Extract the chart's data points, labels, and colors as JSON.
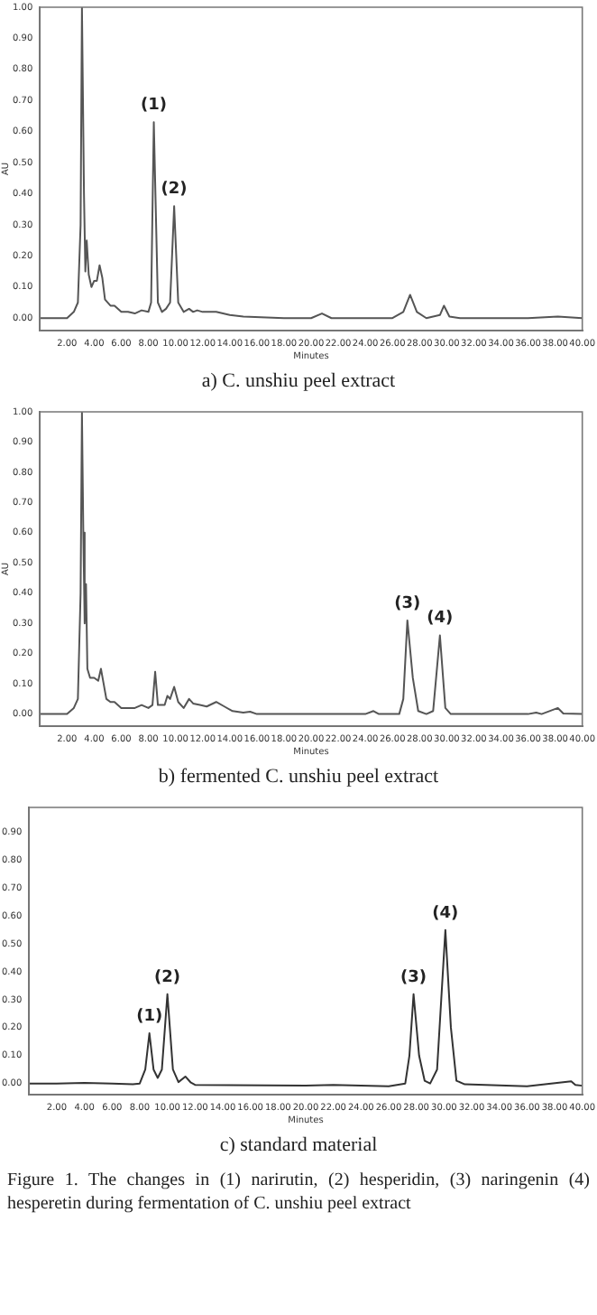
{
  "chart_data": [
    {
      "type": "line",
      "title": "a) C. unshiu peel extract",
      "xlabel": "Minutes",
      "ylabel": "AU",
      "color": "#555555",
      "marker": "none",
      "x": [
        0,
        2,
        2.5,
        2.8,
        3,
        3.1,
        3.25,
        3.35,
        3.45,
        3.6,
        3.8,
        4,
        4.2,
        4.4,
        4.6,
        4.8,
        5.2,
        5.5,
        6,
        6.5,
        7,
        7.5,
        8,
        8.2,
        8.4,
        8.7,
        9,
        9.3,
        9.6,
        9.9,
        10.2,
        10.6,
        11,
        11.3,
        11.6,
        12,
        13,
        14,
        15,
        18,
        20,
        20.8,
        21.5,
        26,
        26.8,
        27.3,
        27.8,
        28.5,
        29.5,
        29.8,
        30.2,
        31,
        36,
        38.2,
        40
      ],
      "values": [
        0,
        0,
        0.02,
        0.05,
        0.3,
        1,
        0.4,
        0.15,
        0.25,
        0.14,
        0.1,
        0.12,
        0.12,
        0.17,
        0.13,
        0.06,
        0.04,
        0.04,
        0.02,
        0.02,
        0.015,
        0.025,
        0.02,
        0.05,
        0.63,
        0.05,
        0.02,
        0.03,
        0.05,
        0.36,
        0.05,
        0.02,
        0.03,
        0.02,
        0.025,
        0.02,
        0.02,
        0.01,
        0.005,
        0,
        0,
        0.015,
        0,
        0,
        0.02,
        0.075,
        0.02,
        0,
        0.01,
        0.04,
        0.005,
        0,
        0,
        0.005,
        0
      ],
      "xlim": [
        0,
        40
      ],
      "ylim": [
        -0.04,
        1
      ],
      "xticks": [
        {
          "value": 2,
          "label": "2.00"
        },
        {
          "value": 4,
          "label": "4.00"
        },
        {
          "value": 6,
          "label": "6.00"
        },
        {
          "value": 8,
          "label": "8.00"
        },
        {
          "value": 10,
          "label": "10.00"
        },
        {
          "value": 12,
          "label": "12.00"
        },
        {
          "value": 14,
          "label": "14.00"
        },
        {
          "value": 16,
          "label": "16.00"
        },
        {
          "value": 18,
          "label": "18.00"
        },
        {
          "value": 20,
          "label": "20.00"
        },
        {
          "value": 22,
          "label": "22.00"
        },
        {
          "value": 24,
          "label": "24.00"
        },
        {
          "value": 26,
          "label": "26.00"
        },
        {
          "value": 28,
          "label": "28.00"
        },
        {
          "value": 30,
          "label": "30.00"
        },
        {
          "value": 32,
          "label": "32.00"
        },
        {
          "value": 34,
          "label": "34.00"
        },
        {
          "value": 36,
          "label": "36.00"
        },
        {
          "value": 38,
          "label": "38.00"
        },
        {
          "value": 40,
          "label": "40.00"
        }
      ],
      "yticks": [
        {
          "value": 0,
          "label": "0.00"
        },
        {
          "value": 0.1,
          "label": "0.10"
        },
        {
          "value": 0.2,
          "label": "0.20"
        },
        {
          "value": 0.3,
          "label": "0.30"
        },
        {
          "value": 0.4,
          "label": "0.40"
        },
        {
          "value": 0.5,
          "label": "0.50"
        },
        {
          "value": 0.6,
          "label": "0.60"
        },
        {
          "value": 0.7,
          "label": "0.70"
        },
        {
          "value": 0.8,
          "label": "0.80"
        },
        {
          "value": 0.9,
          "label": "0.90"
        },
        {
          "value": 1,
          "label": "1.00"
        }
      ],
      "annotations": [
        {
          "text": "(1)",
          "x": 8.4,
          "y": 0.63
        },
        {
          "text": "(2)",
          "x": 9.9,
          "y": 0.36
        }
      ]
    },
    {
      "type": "line",
      "title": "b) fermented C. unshiu peel extract",
      "xlabel": "Minutes",
      "ylabel": "AU",
      "color": "#555555",
      "marker": "none",
      "x": [
        0,
        2,
        2.5,
        2.8,
        3,
        3.1,
        3.2,
        3.3,
        3.4,
        3.5,
        3.7,
        4,
        4.3,
        4.5,
        4.7,
        4.9,
        5.2,
        5.5,
        6,
        6.5,
        7,
        7.5,
        8,
        8.3,
        8.5,
        8.7,
        9.2,
        9.4,
        9.6,
        9.9,
        10.2,
        10.6,
        11,
        11.3,
        11.8,
        12.3,
        13,
        13.6,
        14.2,
        15,
        15.5,
        16,
        24,
        24.6,
        25,
        26.5,
        26.8,
        27.1,
        27.5,
        27.9,
        28.5,
        29,
        29.5,
        29.9,
        30.3,
        36,
        36.6,
        37,
        38.2,
        38.6,
        40
      ],
      "values": [
        0,
        0,
        0.02,
        0.05,
        0.4,
        1,
        0.6,
        0.3,
        0.43,
        0.15,
        0.12,
        0.12,
        0.11,
        0.15,
        0.1,
        0.05,
        0.04,
        0.04,
        0.02,
        0.02,
        0.02,
        0.03,
        0.02,
        0.03,
        0.14,
        0.03,
        0.03,
        0.06,
        0.05,
        0.09,
        0.04,
        0.02,
        0.05,
        0.035,
        0.03,
        0.025,
        0.04,
        0.025,
        0.01,
        0.005,
        0.008,
        0,
        0,
        0.01,
        0,
        0,
        0.05,
        0.31,
        0.12,
        0.01,
        0,
        0.01,
        0.26,
        0.02,
        0,
        0,
        0.005,
        0,
        0.02,
        0.002,
        0
      ],
      "xlim": [
        0,
        40
      ],
      "ylim": [
        -0.04,
        1
      ],
      "xticks": [
        {
          "value": 2,
          "label": "2.00"
        },
        {
          "value": 4,
          "label": "4.00"
        },
        {
          "value": 6,
          "label": "6.00"
        },
        {
          "value": 8,
          "label": "8.00"
        },
        {
          "value": 10,
          "label": "10.00"
        },
        {
          "value": 12,
          "label": "12.00"
        },
        {
          "value": 14,
          "label": "14.00"
        },
        {
          "value": 16,
          "label": "16.00"
        },
        {
          "value": 18,
          "label": "18.00"
        },
        {
          "value": 20,
          "label": "20.00"
        },
        {
          "value": 22,
          "label": "22.00"
        },
        {
          "value": 24,
          "label": "24.00"
        },
        {
          "value": 26,
          "label": "26.00"
        },
        {
          "value": 28,
          "label": "28.00"
        },
        {
          "value": 30,
          "label": "30.00"
        },
        {
          "value": 32,
          "label": "32.00"
        },
        {
          "value": 34,
          "label": "34.00"
        },
        {
          "value": 36,
          "label": "36.00"
        },
        {
          "value": 38,
          "label": "38.00"
        },
        {
          "value": 40,
          "label": "40.00"
        }
      ],
      "yticks": [
        {
          "value": 0,
          "label": "0.00"
        },
        {
          "value": 0.1,
          "label": "0.10"
        },
        {
          "value": 0.2,
          "label": "0.20"
        },
        {
          "value": 0.3,
          "label": "0.30"
        },
        {
          "value": 0.4,
          "label": "0.40"
        },
        {
          "value": 0.5,
          "label": "0.50"
        },
        {
          "value": 0.6,
          "label": "0.60"
        },
        {
          "value": 0.7,
          "label": "0.70"
        },
        {
          "value": 0.8,
          "label": "0.80"
        },
        {
          "value": 0.9,
          "label": "0.90"
        },
        {
          "value": 1,
          "label": "1.00"
        }
      ],
      "annotations": [
        {
          "text": "(3)",
          "x": 27.1,
          "y": 0.31
        },
        {
          "text": "(4)",
          "x": 29.5,
          "y": 0.26
        }
      ]
    },
    {
      "type": "line",
      "title": "c) standard material",
      "xlabel": "Minutes",
      "color": "#333333",
      "marker": "none",
      "x": [
        0,
        2,
        4,
        6,
        7.5,
        8,
        8.4,
        8.7,
        9,
        9.3,
        9.6,
        10,
        10.4,
        10.8,
        11.3,
        11.7,
        12,
        20,
        22,
        26,
        27.2,
        27.5,
        27.8,
        28.2,
        28.6,
        29,
        29.5,
        29.8,
        30.1,
        30.5,
        30.9,
        31.5,
        36,
        39.2,
        39.5,
        40
      ],
      "values": [
        0,
        0,
        0.002,
        0,
        -0.003,
        0,
        0.05,
        0.18,
        0.05,
        0.02,
        0.05,
        0.32,
        0.05,
        0.005,
        0.025,
        0.003,
        -0.005,
        -0.008,
        -0.005,
        -0.01,
        0,
        0.1,
        0.32,
        0.1,
        0.01,
        0,
        0.05,
        0.3,
        0.55,
        0.2,
        0.01,
        -0.003,
        -0.01,
        0.008,
        -0.005,
        -0.008
      ],
      "xlim": [
        0,
        40
      ],
      "ylim": [
        -0.04,
        0.99
      ],
      "xticks": [
        {
          "value": 2,
          "label": "2.00"
        },
        {
          "value": 4,
          "label": "4.00"
        },
        {
          "value": 6,
          "label": "6.00"
        },
        {
          "value": 8,
          "label": "8.00"
        },
        {
          "value": 10,
          "label": "10.00"
        },
        {
          "value": 12,
          "label": "12.00"
        },
        {
          "value": 14,
          "label": "14.00"
        },
        {
          "value": 16,
          "label": "16.00"
        },
        {
          "value": 18,
          "label": "18.00"
        },
        {
          "value": 20,
          "label": "20.00"
        },
        {
          "value": 22,
          "label": "22.00"
        },
        {
          "value": 24,
          "label": "24.00"
        },
        {
          "value": 26,
          "label": "26.00"
        },
        {
          "value": 28,
          "label": "28.00"
        },
        {
          "value": 30,
          "label": "30.00"
        },
        {
          "value": 32,
          "label": "32.00"
        },
        {
          "value": 34,
          "label": "34.00"
        },
        {
          "value": 36,
          "label": "36.00"
        },
        {
          "value": 38,
          "label": "38.00"
        },
        {
          "value": 40,
          "label": "40.00"
        }
      ],
      "yticks": [
        {
          "value": 0,
          "label": "0.00"
        },
        {
          "value": 0.1,
          "label": "0.10"
        },
        {
          "value": 0.2,
          "label": "0.20"
        },
        {
          "value": 0.3,
          "label": "0.30"
        },
        {
          "value": 0.4,
          "label": "0.40"
        },
        {
          "value": 0.5,
          "label": "0.50"
        },
        {
          "value": 0.6,
          "label": "0.60"
        },
        {
          "value": 0.7,
          "label": "0.70"
        },
        {
          "value": 0.8,
          "label": "0.80"
        },
        {
          "value": 0.9,
          "label": "0.90"
        }
      ],
      "annotations": [
        {
          "text": "(1)",
          "x": 8.7,
          "y": 0.18
        },
        {
          "text": "(2)",
          "x": 10,
          "y": 0.32
        },
        {
          "text": "(3)",
          "x": 27.8,
          "y": 0.32
        },
        {
          "text": "(4)",
          "x": 30.1,
          "y": 0.55
        },
        "Figure 1. The changes in (1) narirutin, (2) hesperidin, (3) naringenin (4) hesperetin during fermentation of C. unshiu peel extract"
      ]
    }
  ]
}
